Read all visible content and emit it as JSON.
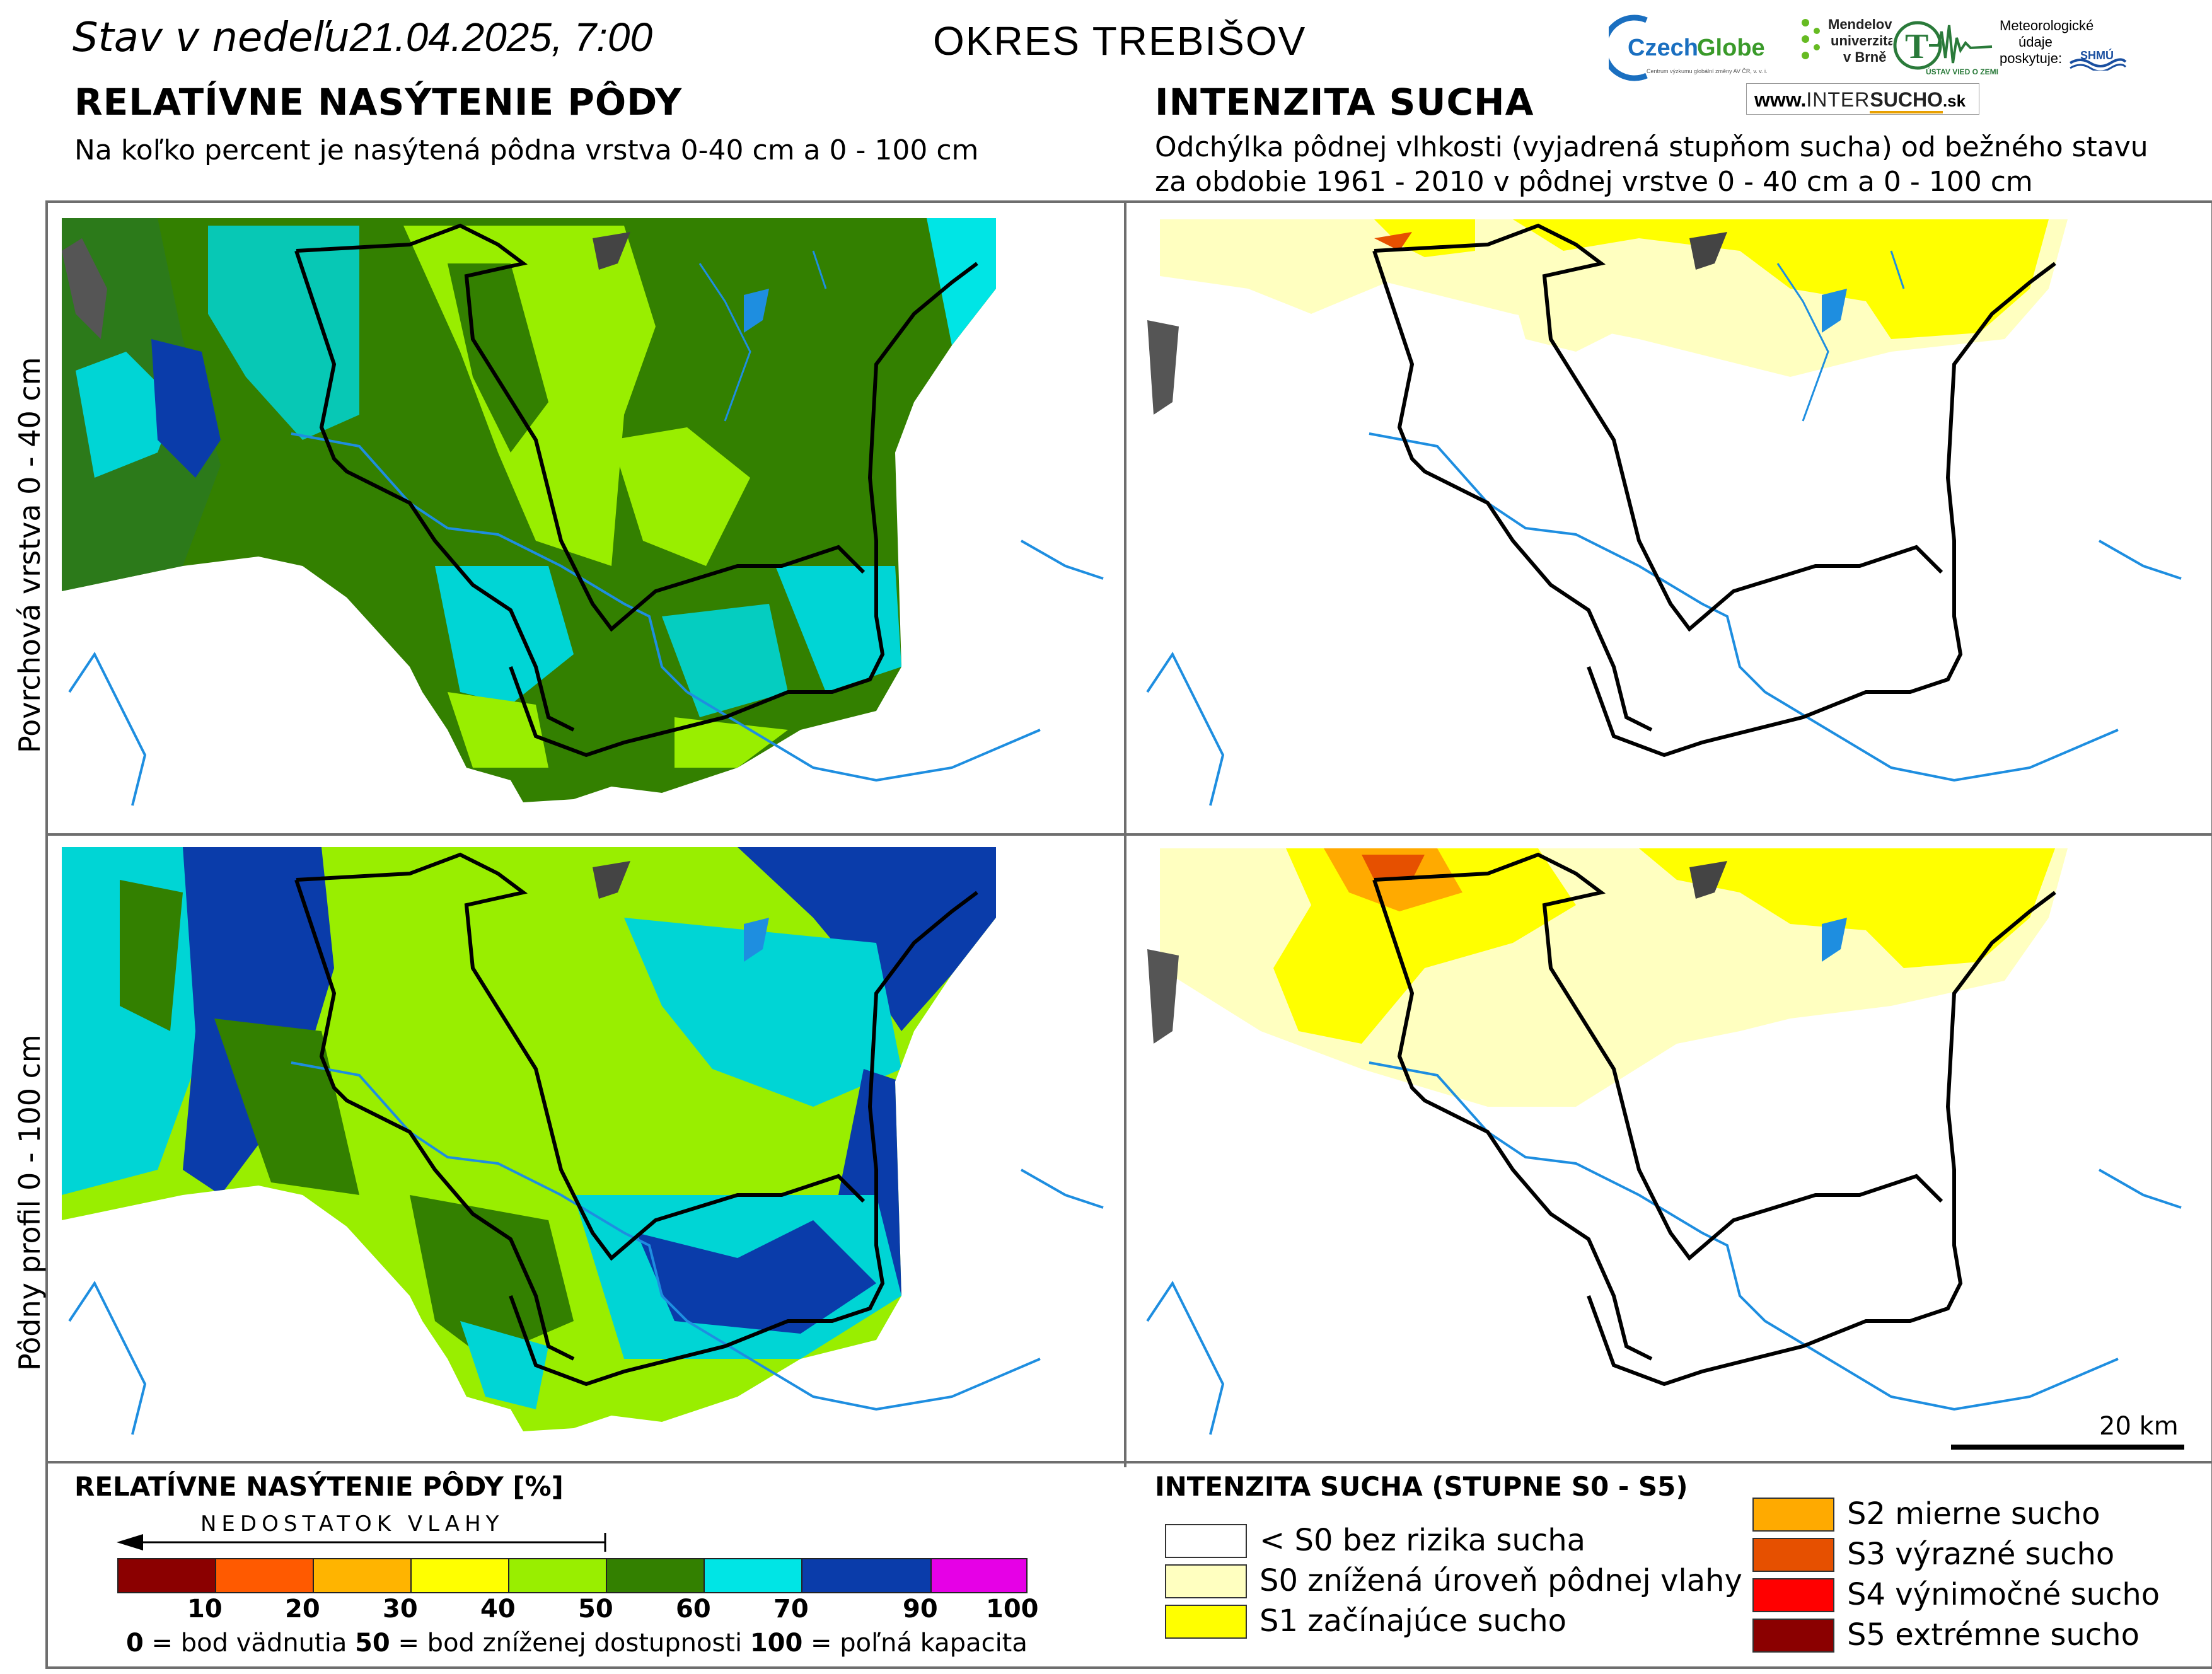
{
  "header": {
    "state_prefix": "Stav v nedeľu",
    "date": "21.04.2025, 7:00",
    "okres": "OKRES  TREBIŠOV"
  },
  "left_panel": {
    "title": "RELATÍVNE NASÝTENIE PÔDY",
    "subtitle": "Na koľko percent je nasýtená pôdna vrstva 0-40 cm a 0 - 100 cm"
  },
  "right_panel": {
    "title": "INTENZITA SUCHA",
    "subtitle_line1": "Odchýlka pôdnej vlhkosti (vyjadrená stupňom sucha) od bežného stavu",
    "subtitle_line2": "za obdobie 1961 - 2010 v pôdnej vrstve 0 - 40 cm a 0 - 100 cm"
  },
  "rows": {
    "top_label": "Povrchová vrstva 0 - 40 cm",
    "bottom_label": "Pôdny profil 0 - 100 cm"
  },
  "logos": {
    "czechglobe": "CzechGlobe",
    "czechglobe_sub": "Centrum výzkumu globální změny AV ČR, v. v. i.",
    "mendelu_1": "Mendelova",
    "mendelu_2": "univerzita",
    "mendelu_3": "v Brně",
    "uvz": "ÚSTAV VIED O ZEMI",
    "meteo_1": "Meteorologické",
    "meteo_2": "údaje",
    "meteo_3": "poskytuje:",
    "shmu": "SHMÚ",
    "intersucho_www": "www.",
    "intersucho_a": "INTER",
    "intersucho_b": "SUCHO",
    "intersucho_sk": ".sk"
  },
  "scale_bar": {
    "label": "20 km"
  },
  "legend_saturation": {
    "title": "RELATÍVNE NASÝTENIE PÔDY [%]",
    "arrow_label": "NEDOSTATOK VLAHY",
    "colors": [
      "#8b0000",
      "#ff5a00",
      "#ffb400",
      "#ffff00",
      "#99ee00",
      "#338000",
      "#00e5e5",
      "#0a3caa",
      "#e600e6"
    ],
    "ticks": [
      "10",
      "20",
      "30",
      "40",
      "50",
      "60",
      "70",
      "90",
      "100"
    ],
    "note_0": "0",
    "note_0_txt": " = bod vädnutia  ",
    "note_50": "50",
    "note_50_txt": " = bod zníženej dostupnosti  ",
    "note_100": "100",
    "note_100_txt": " = poľná kapacita"
  },
  "legend_drought": {
    "title": "INTENZITA SUCHA (STUPNE S0 - S5)",
    "items": [
      {
        "label": "< S0 bez rizika sucha",
        "color": "#ffffff"
      },
      {
        "label": "S0 znížená úroveň pôdnej vlahy",
        "color": "#ffffc0"
      },
      {
        "label": "S1 začínajúce sucho",
        "color": "#ffff00"
      },
      {
        "label": "S2 mierne sucho",
        "color": "#ffaa00"
      },
      {
        "label": "S3 výrazné sucho",
        "color": "#e65000"
      },
      {
        "label": "S4 výnimočné sucho",
        "color": "#ff0000"
      },
      {
        "label": "S5 extrémne sucho",
        "color": "#8b0000"
      }
    ]
  }
}
